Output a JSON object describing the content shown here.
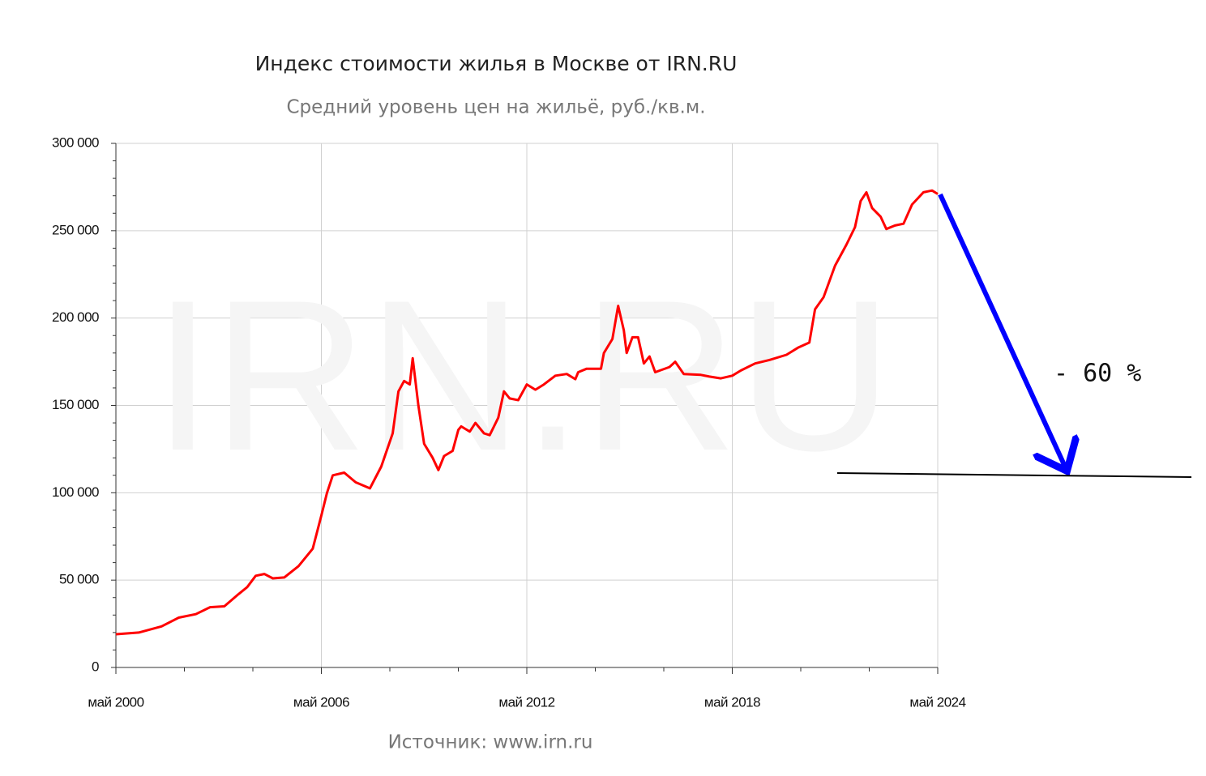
{
  "chart_data": {
    "type": "line",
    "title": "Индекс стоимости жилья в Москве от IRN.RU",
    "subtitle": "Средний уровень цен на жильё, руб./кв.м.",
    "source": "Источник: www.irn.ru",
    "watermark": "IRN.RU",
    "annotation": "- 60 %",
    "x": [
      "2000-05",
      "2001-01",
      "2001-09",
      "2002-03",
      "2002-09",
      "2003-02",
      "2003-07",
      "2003-12",
      "2004-03",
      "2004-06",
      "2004-09",
      "2004-12",
      "2005-04",
      "2005-09",
      "2006-02",
      "2006-05",
      "2006-07",
      "2006-09",
      "2007-01",
      "2007-05",
      "2007-10",
      "2008-02",
      "2008-06",
      "2008-08",
      "2008-10",
      "2008-12",
      "2009-01",
      "2009-03",
      "2009-05",
      "2009-08",
      "2009-10",
      "2009-12",
      "2010-03",
      "2010-05",
      "2010-06",
      "2010-09",
      "2010-11",
      "2011-02",
      "2011-04",
      "2011-07",
      "2011-09",
      "2011-11",
      "2012-02",
      "2012-05",
      "2012-08",
      "2012-11",
      "2013-03",
      "2013-07",
      "2013-10",
      "2013-11",
      "2014-02",
      "2014-07",
      "2014-08",
      "2014-11",
      "2015-01",
      "2015-03",
      "2015-04",
      "2015-06",
      "2015-08",
      "2015-10",
      "2015-12",
      "2016-02",
      "2016-07",
      "2016-09",
      "2016-12",
      "2017-06",
      "2017-09",
      "2018-01",
      "2018-05",
      "2018-08",
      "2019-01",
      "2019-06",
      "2019-12",
      "2020-04",
      "2020-08",
      "2020-10",
      "2021-01",
      "2021-05",
      "2021-09",
      "2021-12",
      "2022-02",
      "2022-04",
      "2022-06",
      "2022-09",
      "2022-11",
      "2023-02",
      "2023-05",
      "2023-08",
      "2023-12",
      "2024-03",
      "2024-05"
    ],
    "series": [
      {
        "name": "Средний уровень цен",
        "color": "#ff0000",
        "values": [
          19000,
          20000,
          23500,
          28500,
          30500,
          34500,
          35000,
          42000,
          46000,
          52500,
          53500,
          51000,
          51500,
          58000,
          68000,
          87000,
          100000,
          110000,
          111500,
          106000,
          102500,
          115000,
          134000,
          158000,
          164000,
          162000,
          177000,
          150000,
          128000,
          120000,
          113000,
          121000,
          124000,
          136000,
          138000,
          135000,
          140000,
          134000,
          133000,
          143000,
          158000,
          154000,
          153000,
          162000,
          159000,
          162000,
          167000,
          168000,
          165000,
          169000,
          171000,
          171000,
          180000,
          188000,
          207000,
          193000,
          180000,
          189000,
          189000,
          174000,
          178000,
          169000,
          172000,
          175000,
          168000,
          167500,
          166500,
          165500,
          167000,
          170000,
          174000,
          176000,
          179000,
          183000,
          186000,
          205000,
          212000,
          230000,
          242000,
          252000,
          267000,
          272000,
          263000,
          258000,
          251000,
          253000,
          254000,
          265000,
          272000,
          273000,
          271000
        ]
      }
    ],
    "xlim": [
      "2000-05",
      "2024-05"
    ],
    "xticks": [
      {
        "value": "2000-05",
        "label": "май 2000"
      },
      {
        "value": "2006-05",
        "label": "май 2006"
      },
      {
        "value": "2012-05",
        "label": "май 2012"
      },
      {
        "value": "2018-05",
        "label": "май 2018"
      },
      {
        "value": "2024-05",
        "label": "май 2024"
      }
    ],
    "ylim": [
      0,
      300000
    ],
    "yticks": [
      0,
      {
        "value": 50000,
        "label": "50 000"
      },
      {
        "value": 100000,
        "label": "100 000"
      },
      {
        "value": 150000,
        "label": "150 000"
      },
      {
        "value": 200000,
        "label": "200 000"
      },
      {
        "value": 250000,
        "label": "250 000"
      },
      {
        "value": 300000,
        "label": "300 000"
      }
    ],
    "grid": true
  }
}
